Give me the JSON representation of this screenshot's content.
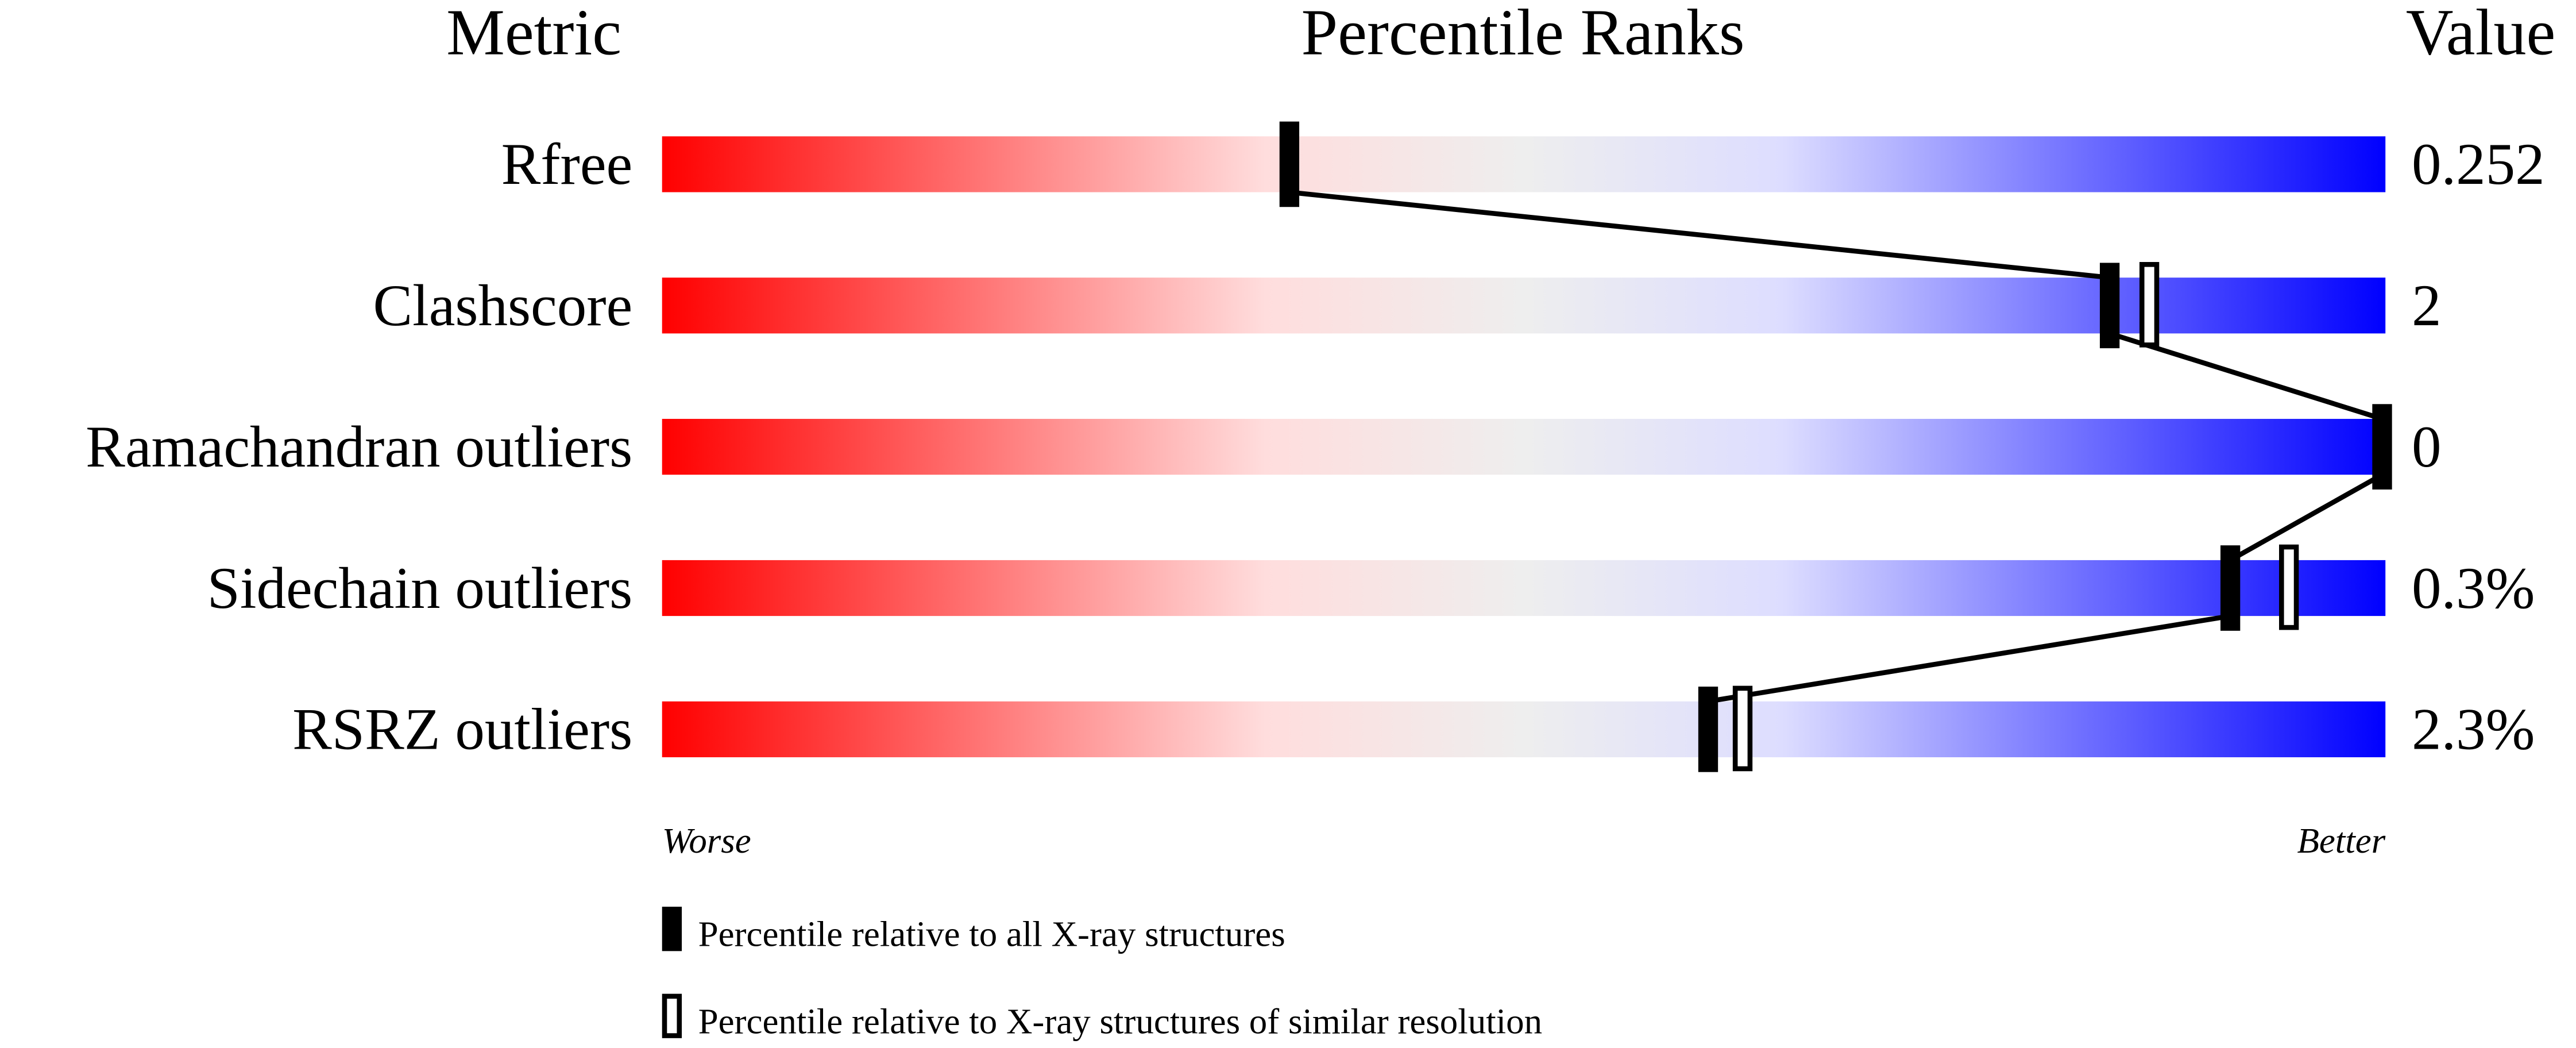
{
  "chart_data": {
    "type": "percentile-slider",
    "headers": {
      "metric": "Metric",
      "percentile": "Percentile Ranks",
      "value": "Value"
    },
    "xlim": [
      0,
      100
    ],
    "axis_labels": {
      "left": "Worse",
      "right": "Better"
    },
    "gradient_colors": [
      "#ff0000",
      "#ffdddd",
      "#eeeeee",
      "#ddddff",
      "#0000ff"
    ],
    "metrics": [
      {
        "name": "Rfree",
        "value": "0.252",
        "percentile_all": 36.4,
        "percentile_similar": null
      },
      {
        "name": "Clashscore",
        "value": "2",
        "percentile_all": 84.0,
        "percentile_similar": 86.3
      },
      {
        "name": "Ramachandran outliers",
        "value": "0",
        "percentile_all": 100,
        "percentile_similar": 100
      },
      {
        "name": "Sidechain outliers",
        "value": "0.3%",
        "percentile_all": 91.0,
        "percentile_similar": 94.4
      },
      {
        "name": "RSRZ outliers",
        "value": "2.3%",
        "percentile_all": 60.7,
        "percentile_similar": 62.7
      }
    ],
    "legend": [
      {
        "marker": "filled",
        "label": "Percentile relative to all X-ray structures"
      },
      {
        "marker": "open",
        "label": "Percentile relative to X-ray structures of similar resolution"
      }
    ]
  }
}
